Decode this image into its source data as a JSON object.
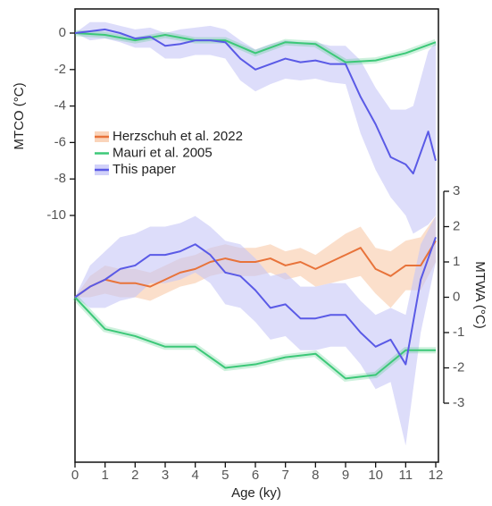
{
  "chart_data": {
    "type": "line",
    "ylabel": "MTCO (°C)",
    "y2label": "MTWA (°C)",
    "xlabel": "Age (ky)",
    "xlim": [
      0,
      12
    ],
    "xticks": [
      0,
      1,
      2,
      3,
      4,
      5,
      6,
      7,
      8,
      9,
      10,
      11,
      12
    ],
    "ylim": [
      -10,
      0
    ],
    "yticks": [
      0,
      -2,
      -4,
      -6,
      -8,
      -10
    ],
    "y2lim": [
      -3,
      3
    ],
    "y2ticks": [
      3,
      2,
      1,
      0,
      -1,
      -2,
      -3
    ],
    "legend": "upper left",
    "series": [
      {
        "name": "Herzschuh et al. 2022",
        "color": "#e8733a",
        "band_color": "#f9c9a9",
        "axis": "y2",
        "x": [
          0,
          0.5,
          1,
          1.5,
          2,
          2.5,
          3,
          3.5,
          4,
          4.5,
          5,
          5.5,
          6,
          6.5,
          7,
          7.5,
          8,
          8.5,
          9,
          9.5,
          10,
          10.5,
          11,
          11.5,
          12
        ],
        "values": [
          0,
          0.3,
          0.5,
          0.4,
          0.4,
          0.3,
          0.5,
          0.7,
          0.8,
          1.0,
          1.1,
          1.0,
          1.0,
          1.1,
          0.9,
          1.0,
          0.8,
          1.0,
          1.2,
          1.4,
          0.8,
          0.6,
          0.9,
          0.9,
          1.6
        ],
        "upper": [
          0,
          0.6,
          0.9,
          0.8,
          0.8,
          0.7,
          0.9,
          1.1,
          1.2,
          1.4,
          1.5,
          1.4,
          1.4,
          1.5,
          1.3,
          1.4,
          1.2,
          1.5,
          1.8,
          2.0,
          1.4,
          1.3,
          1.6,
          1.7,
          2.3
        ],
        "lower": [
          0,
          0.0,
          0.1,
          0.0,
          0.0,
          -0.1,
          0.1,
          0.3,
          0.4,
          0.6,
          0.7,
          0.6,
          0.6,
          0.7,
          0.5,
          0.6,
          0.3,
          0.4,
          0.5,
          0.6,
          0.1,
          -0.3,
          0.2,
          0.2,
          1.0
        ]
      },
      {
        "name": "Mauri et al. 2005",
        "color": "#3cc878",
        "axis": "y",
        "x": [
          0,
          1,
          2,
          3,
          4,
          5,
          6,
          7,
          8,
          9,
          10,
          11,
          12
        ],
        "values": [
          0,
          -0.1,
          -0.4,
          -0.1,
          -0.4,
          -0.4,
          -1.1,
          -0.5,
          -0.6,
          -1.6,
          -1.5,
          -1.1,
          -0.5
        ]
      },
      {
        "name": "This paper",
        "color": "#5a5ae6",
        "band_color": "#c6c6f7",
        "axis": "y",
        "x": [
          0,
          0.5,
          1,
          1.5,
          2,
          2.5,
          3,
          3.5,
          4,
          4.5,
          5,
          5.5,
          6,
          6.5,
          7,
          7.5,
          8,
          8.5,
          9,
          9.5,
          10,
          10.5,
          11,
          11.25,
          11.75,
          12
        ],
        "values": [
          0,
          0.1,
          0.2,
          0,
          -0.3,
          -0.2,
          -0.7,
          -0.6,
          -0.4,
          -0.4,
          -0.5,
          -1.4,
          -2.0,
          -1.7,
          -1.4,
          -1.6,
          -1.5,
          -1.7,
          -1.7,
          -3.5,
          -5.0,
          -6.8,
          -7.2,
          -7.7,
          -5.4,
          -7.0
        ],
        "upper": [
          0,
          0.6,
          0.6,
          0.4,
          0.2,
          0.3,
          0,
          0.2,
          0.3,
          0.4,
          0.2,
          -0.4,
          -0.9,
          -0.6,
          -0.4,
          -0.5,
          -0.5,
          -0.7,
          -0.7,
          -1.5,
          -3,
          -4.2,
          -4.2,
          -4,
          -1,
          -0.5
        ],
        "lower": [
          0,
          -0.4,
          -0.3,
          -0.5,
          -0.8,
          -0.8,
          -1.4,
          -1.4,
          -1.2,
          -1.2,
          -1.4,
          -2.6,
          -3.2,
          -2.8,
          -2.5,
          -2.6,
          -2.5,
          -2.7,
          -2.8,
          -5.5,
          -7.5,
          -9,
          -10,
          -11,
          -10.5,
          -10
        ]
      },
      {
        "name": "Mauri et al. 2005",
        "color": "#3cc878",
        "axis": "y2",
        "x": [
          0,
          1,
          2,
          3,
          4,
          5,
          6,
          7,
          8,
          9,
          10,
          11,
          12
        ],
        "values": [
          0,
          -0.9,
          -1.1,
          -1.4,
          -1.4,
          -2.0,
          -1.9,
          -1.7,
          -1.6,
          -2.3,
          -2.2,
          -1.5,
          -1.5
        ]
      },
      {
        "name": "This paper",
        "color": "#5a5ae6",
        "band_color": "#c6c6f7",
        "axis": "y2",
        "x": [
          0,
          0.5,
          1,
          1.5,
          2,
          2.5,
          3,
          3.5,
          4,
          4.5,
          5,
          5.5,
          6,
          6.5,
          7,
          7.5,
          8,
          8.5,
          9,
          9.5,
          10,
          10.5,
          11,
          11.5,
          12
        ],
        "values": [
          0,
          0.3,
          0.5,
          0.8,
          0.9,
          1.2,
          1.2,
          1.3,
          1.5,
          1.2,
          0.7,
          0.6,
          0.2,
          -0.3,
          -0.2,
          -0.6,
          -0.6,
          -0.5,
          -0.5,
          -1.0,
          -1.4,
          -1.2,
          -1.9,
          0.5,
          1.7
        ],
        "upper": [
          0,
          0.9,
          1.3,
          1.7,
          1.8,
          2.0,
          2.0,
          2.1,
          2.3,
          2.0,
          1.6,
          1.5,
          1.1,
          0.6,
          0.7,
          0.3,
          0.3,
          0.4,
          0.4,
          -0.1,
          -0.5,
          -0.3,
          -0.5,
          1.5,
          2.3
        ],
        "lower": [
          0,
          -0.3,
          -0.3,
          -0.1,
          0.0,
          0.4,
          0.4,
          0.5,
          0.7,
          0.4,
          -0.2,
          -0.3,
          -0.7,
          -1.2,
          -1.1,
          -1.5,
          -1.5,
          -1.4,
          -1.4,
          -1.9,
          -2.6,
          -2.4,
          -4.2,
          -1.0,
          1.0
        ]
      }
    ]
  }
}
